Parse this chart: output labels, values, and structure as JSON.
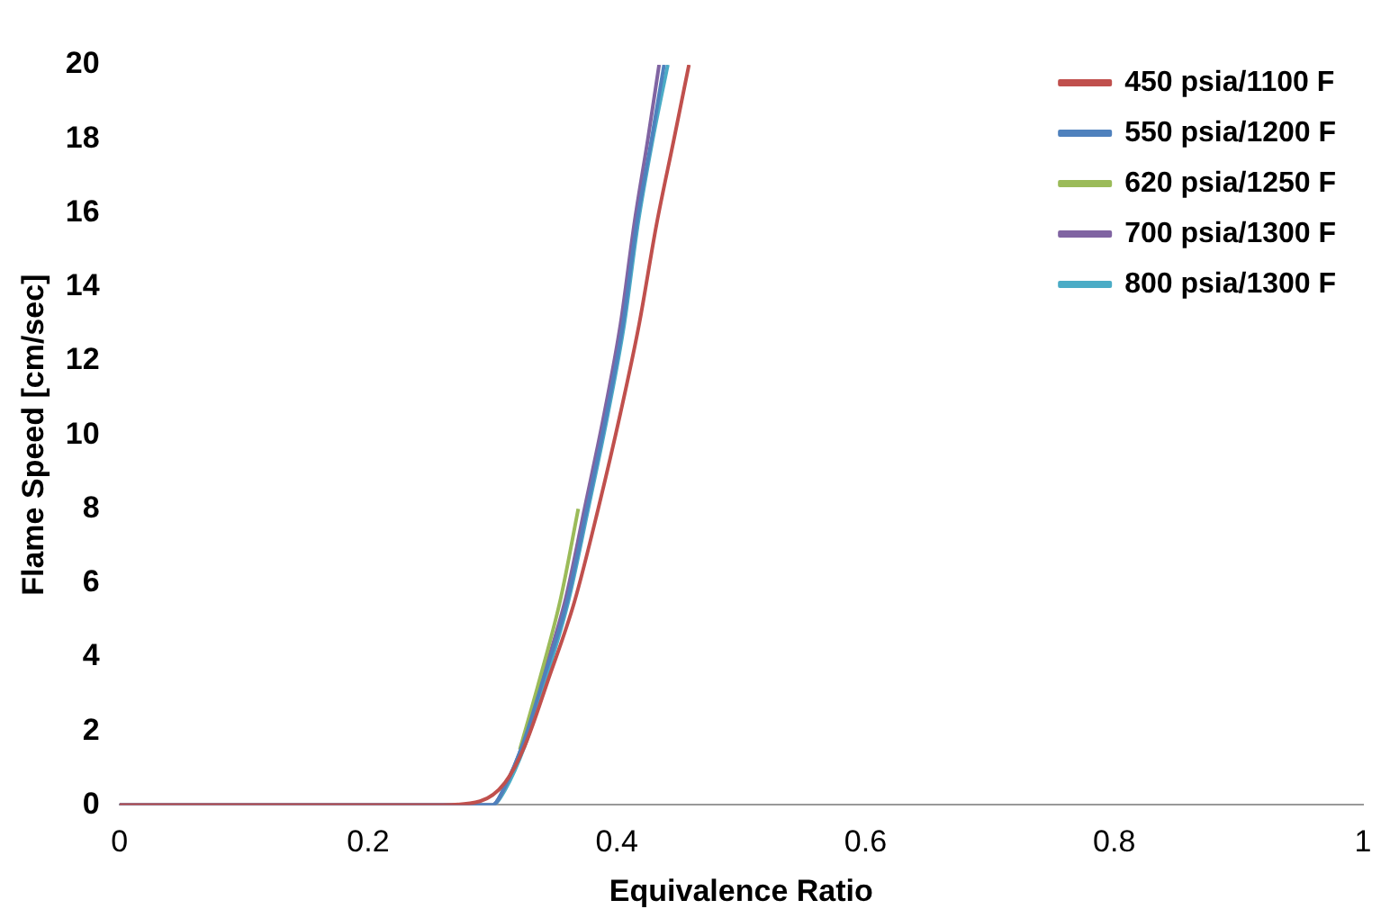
{
  "chart_data": {
    "type": "line",
    "xlabel": "Equivalence Ratio",
    "ylabel": "Flame Speed [cm/sec]",
    "xlim": [
      0,
      1
    ],
    "ylim": [
      0,
      20
    ],
    "xticks": [
      0,
      0.2,
      0.4,
      0.6,
      0.8,
      1
    ],
    "yticks": [
      0,
      2,
      4,
      6,
      8,
      10,
      12,
      14,
      16,
      18,
      20
    ],
    "grid": false,
    "legend": "top right",
    "marker": "none",
    "line_style": "solid",
    "series": [
      {
        "name": "450 psia/1100 F",
        "color": "#c0504d",
        "x": [
          0,
          0.22,
          0.26,
          0.29,
          0.31,
          0.326,
          0.345,
          0.366,
          0.385,
          0.403,
          0.418,
          0.432,
          0.446,
          0.458
        ],
        "values": [
          0,
          0,
          0,
          0.1,
          0.6,
          1.6,
          3.4,
          5.5,
          8,
          10.6,
          13,
          15.7,
          18,
          20
        ]
      },
      {
        "name": "550 psia/1200 F",
        "color": "#4f81bd",
        "x": [
          0,
          0.3,
          0.31,
          0.325,
          0.34,
          0.36,
          0.376,
          0.392,
          0.405,
          0.416,
          0.428,
          0.438
        ],
        "values": [
          0,
          0,
          0.5,
          1.7,
          3.3,
          5.5,
          8,
          10.6,
          13,
          15.7,
          18,
          20
        ]
      },
      {
        "name": "620 psia/1250 F",
        "color": "#9bbb59",
        "x": [
          0.322,
          0.338,
          0.355,
          0.369
        ],
        "values": [
          1.5,
          3.4,
          5.6,
          8
        ]
      },
      {
        "name": "700 psia/1300 F",
        "color": "#8064a2",
        "x": [
          0,
          0.3,
          0.31,
          0.325,
          0.34,
          0.359,
          0.374,
          0.39,
          0.403,
          0.414,
          0.425,
          0.434
        ],
        "values": [
          0,
          0,
          0.5,
          1.7,
          3.4,
          5.6,
          8,
          10.6,
          13,
          15.7,
          18,
          20
        ]
      },
      {
        "name": "800 psia/1300 F",
        "color": "#4bacc6",
        "x": [
          0,
          0.3,
          0.31,
          0.326,
          0.342,
          0.361,
          0.377,
          0.393,
          0.406,
          0.417,
          0.429,
          0.441
        ],
        "values": [
          0,
          0,
          0.4,
          1.6,
          3.3,
          5.5,
          8,
          10.6,
          13,
          15.7,
          18,
          20
        ]
      }
    ]
  }
}
